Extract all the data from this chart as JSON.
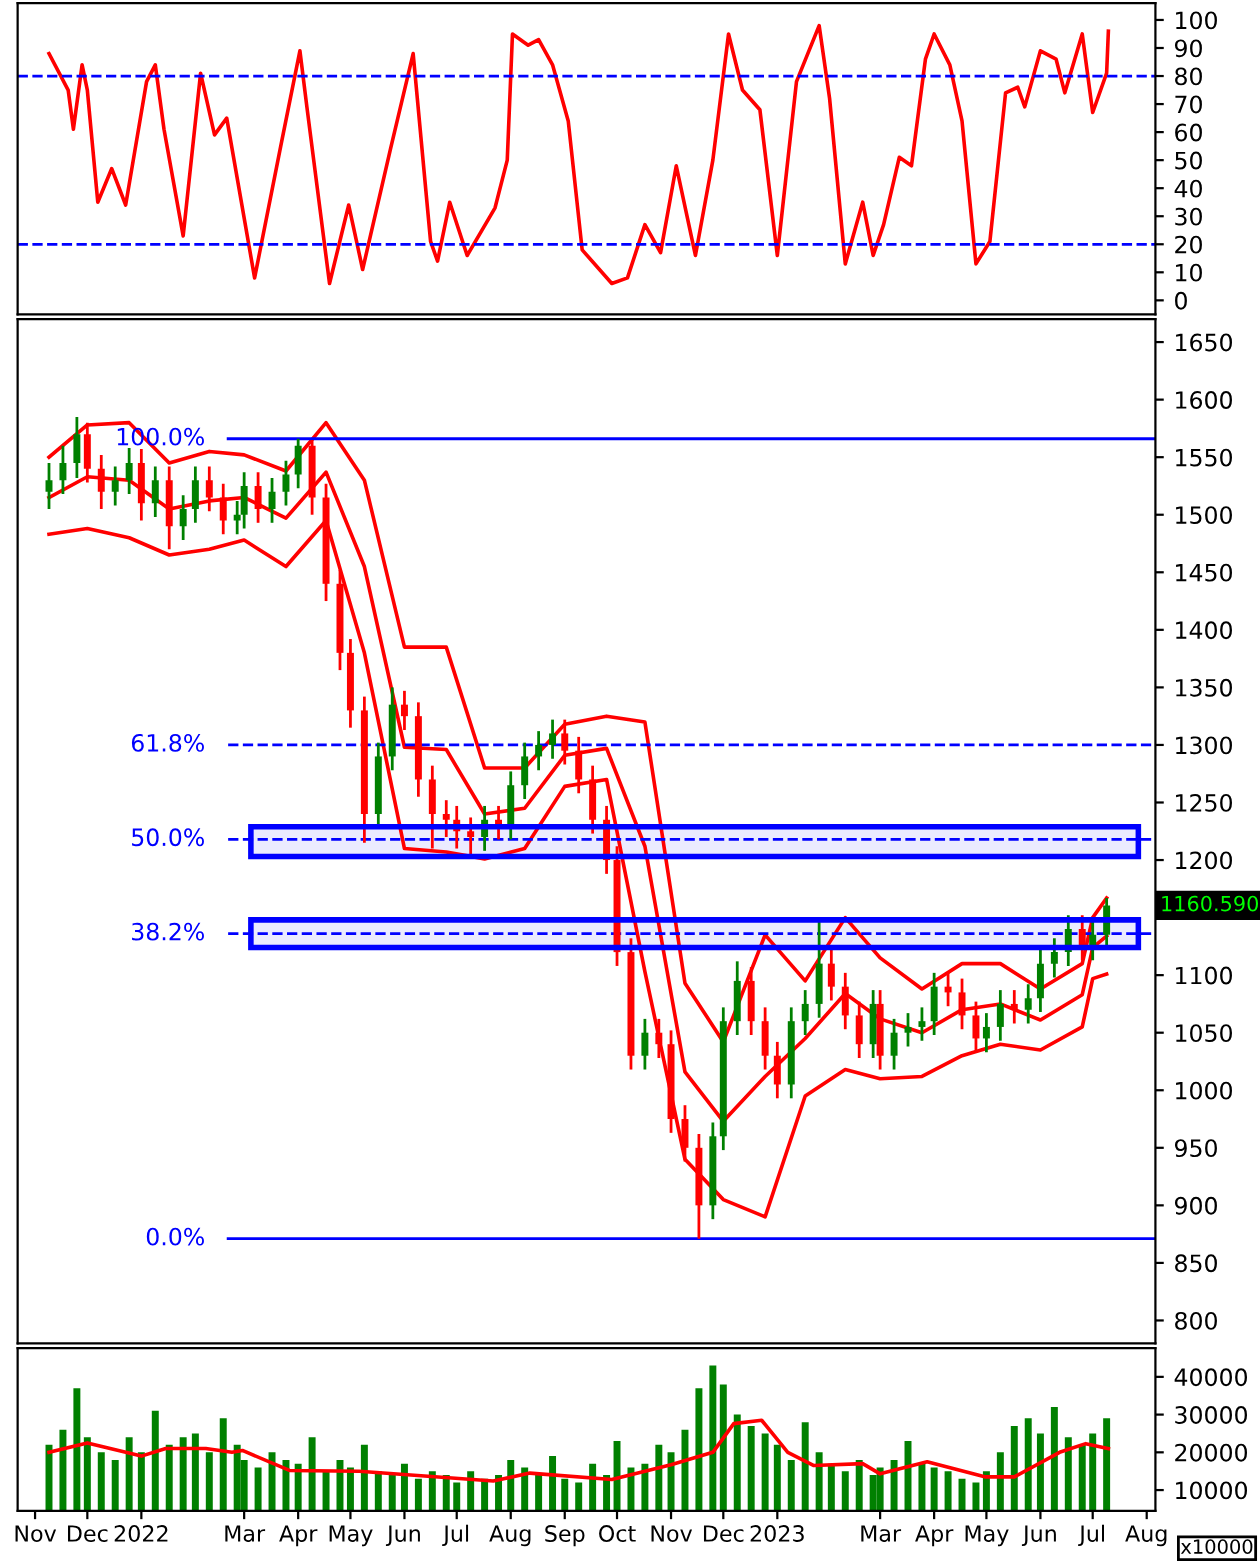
{
  "chart_data": [
    {
      "type": "line",
      "xlim": [
        "2021-10-22",
        "2023-08-06"
      ],
      "ylim": [
        -5,
        106
      ],
      "yticks": [
        0,
        10,
        20,
        30,
        40,
        50,
        60,
        70,
        80,
        90,
        100
      ],
      "tick_labels": "y",
      "series": [
        {
          "color": "#ff0000",
          "x": [
            "2021-11-09",
            "2021-11-20",
            "2021-11-23",
            "2021-11-28",
            "2021-12-01",
            "2021-12-07",
            "2021-12-15",
            "2021-12-23",
            "2022-01-04",
            "2022-01-09",
            "2022-01-14",
            "2022-01-25",
            "2022-02-04",
            "2022-02-12",
            "2022-02-19",
            "2022-03-07",
            "2022-03-22",
            "2022-04-02",
            "2022-04-06",
            "2022-04-19",
            "2022-04-30",
            "2022-05-08",
            "2022-05-24",
            "2022-06-06",
            "2022-06-16",
            "2022-06-20",
            "2022-06-27",
            "2022-07-07",
            "2022-07-23",
            "2022-07-30",
            "2022-08-02",
            "2022-08-11",
            "2022-08-17",
            "2022-08-25",
            "2022-09-03",
            "2022-09-11",
            "2022-09-28",
            "2022-10-07",
            "2022-10-17",
            "2022-10-26",
            "2022-11-04",
            "2022-11-15",
            "2022-11-25",
            "2022-12-04",
            "2022-12-12",
            "2022-12-22",
            "2023-01-01",
            "2023-01-12",
            "2023-01-25",
            "2023-01-31",
            "2023-02-09",
            "2023-02-19",
            "2023-02-25",
            "2023-03-03",
            "2023-03-12",
            "2023-03-19",
            "2023-03-27",
            "2023-04-01",
            "2023-04-10",
            "2023-04-17",
            "2023-04-25",
            "2023-05-03",
            "2023-05-12",
            "2023-05-19",
            "2023-05-23",
            "2023-06-01",
            "2023-06-10",
            "2023-06-15",
            "2023-06-25",
            "2023-07-01",
            "2023-07-09",
            "2023-07-10"
          ],
          "values": [
            88,
            75,
            61,
            84,
            75,
            35,
            47,
            34,
            78,
            84,
            61,
            23,
            81,
            59,
            65,
            8,
            55,
            89,
            69,
            6,
            34,
            11,
            54,
            88,
            21,
            14,
            35,
            16,
            33,
            50,
            95,
            91,
            93,
            84,
            64,
            18,
            6,
            8,
            27,
            17,
            48,
            16,
            50,
            95,
            75,
            68,
            16,
            78,
            98,
            72,
            13,
            35,
            16,
            27,
            51,
            48,
            86,
            95,
            84,
            64,
            13,
            21,
            74,
            76,
            69,
            89,
            86,
            74,
            95,
            67,
            81,
            96
          ]
        }
      ],
      "ref_lines": [
        {
          "axis": "y",
          "value": 80,
          "color": "#0000ff",
          "line_style": "dashed"
        },
        {
          "axis": "y",
          "value": 20,
          "color": "#0000ff",
          "line_style": "dashed"
        }
      ]
    },
    {
      "type": "candlestick",
      "xlim": [
        "2021-10-22",
        "2023-08-06"
      ],
      "ylim": [
        780,
        1670
      ],
      "yticks": [
        800,
        850,
        900,
        950,
        1000,
        1050,
        1100,
        {
          "value": 1150,
          "label": null
        },
        1200,
        1250,
        1300,
        1350,
        1400,
        1450,
        1500,
        1550,
        1600,
        1650
      ],
      "tick_labels": "y",
      "x": [
        "2021-11-09",
        "2021-11-17",
        "2021-11-25",
        "2021-12-01",
        "2021-12-09",
        "2021-12-17",
        "2021-12-25",
        "2022-01-01",
        "2022-01-09",
        "2022-01-17",
        "2022-01-25",
        "2022-02-01",
        "2022-02-09",
        "2022-02-17",
        "2022-02-25",
        "2022-03-01",
        "2022-03-09",
        "2022-03-17",
        "2022-03-25",
        "2022-04-01",
        "2022-04-09",
        "2022-04-17",
        "2022-04-25",
        "2022-05-01",
        "2022-05-09",
        "2022-05-17",
        "2022-05-25",
        "2022-06-01",
        "2022-06-09",
        "2022-06-17",
        "2022-06-25",
        "2022-07-01",
        "2022-07-09",
        "2022-07-17",
        "2022-07-25",
        "2022-08-01",
        "2022-08-09",
        "2022-08-17",
        "2022-08-25",
        "2022-09-01",
        "2022-09-09",
        "2022-09-17",
        "2022-09-25",
        "2022-10-01",
        "2022-10-09",
        "2022-10-17",
        "2022-10-25",
        "2022-11-01",
        "2022-11-09",
        "2022-11-17",
        "2022-11-25",
        "2022-12-01",
        "2022-12-09",
        "2022-12-17",
        "2022-12-25",
        "2023-01-01",
        "2023-01-09",
        "2023-01-17",
        "2023-01-25",
        "2023-02-01",
        "2023-02-09",
        "2023-02-17",
        "2023-02-25",
        "2023-03-01",
        "2023-03-09",
        "2023-03-17",
        "2023-03-25",
        "2023-04-01",
        "2023-04-09",
        "2023-04-17",
        "2023-04-25",
        "2023-05-01",
        "2023-05-09",
        "2023-05-17",
        "2023-05-25",
        "2023-06-01",
        "2023-06-09",
        "2023-06-17",
        "2023-06-25",
        "2023-07-01",
        "2023-07-09"
      ],
      "ohlc": [
        [
          1520,
          1545,
          1505,
          1530
        ],
        [
          1530,
          1560,
          1518,
          1545
        ],
        [
          1545,
          1585,
          1532,
          1570
        ],
        [
          1570,
          1580,
          1528,
          1540
        ],
        [
          1540,
          1552,
          1505,
          1520
        ],
        [
          1520,
          1542,
          1508,
          1530
        ],
        [
          1530,
          1558,
          1518,
          1545
        ],
        [
          1545,
          1557,
          1495,
          1510
        ],
        [
          1510,
          1542,
          1498,
          1530
        ],
        [
          1530,
          1542,
          1470,
          1490
        ],
        [
          1490,
          1517,
          1478,
          1505
        ],
        [
          1505,
          1542,
          1493,
          1530
        ],
        [
          1530,
          1542,
          1503,
          1515
        ],
        [
          1515,
          1527,
          1483,
          1495
        ],
        [
          1495,
          1512,
          1483,
          1500
        ],
        [
          1500,
          1537,
          1488,
          1525
        ],
        [
          1525,
          1537,
          1493,
          1505
        ],
        [
          1505,
          1532,
          1493,
          1520
        ],
        [
          1520,
          1547,
          1508,
          1535
        ],
        [
          1535,
          1566,
          1523,
          1560
        ],
        [
          1560,
          1565,
          1500,
          1515
        ],
        [
          1515,
          1527,
          1425,
          1440
        ],
        [
          1440,
          1452,
          1365,
          1380
        ],
        [
          1380,
          1392,
          1315,
          1330
        ],
        [
          1330,
          1342,
          1215,
          1240
        ],
        [
          1240,
          1302,
          1228,
          1290
        ],
        [
          1290,
          1350,
          1278,
          1335
        ],
        [
          1335,
          1347,
          1313,
          1325
        ],
        [
          1325,
          1337,
          1255,
          1270
        ],
        [
          1270,
          1282,
          1210,
          1240
        ],
        [
          1240,
          1252,
          1220,
          1235
        ],
        [
          1235,
          1247,
          1210,
          1225
        ],
        [
          1225,
          1237,
          1205,
          1220
        ],
        [
          1220,
          1247,
          1208,
          1235
        ],
        [
          1235,
          1247,
          1218,
          1230
        ],
        [
          1230,
          1277,
          1218,
          1265
        ],
        [
          1265,
          1302,
          1253,
          1290
        ],
        [
          1290,
          1312,
          1278,
          1300
        ],
        [
          1300,
          1322,
          1288,
          1310
        ],
        [
          1310,
          1322,
          1283,
          1295
        ],
        [
          1295,
          1307,
          1258,
          1270
        ],
        [
          1270,
          1282,
          1223,
          1235
        ],
        [
          1235,
          1247,
          1188,
          1200
        ],
        [
          1200,
          1212,
          1108,
          1120
        ],
        [
          1120,
          1132,
          1018,
          1030
        ],
        [
          1030,
          1062,
          1018,
          1050
        ],
        [
          1050,
          1062,
          1028,
          1040
        ],
        [
          1040,
          1052,
          963,
          975
        ],
        [
          975,
          987,
          938,
          950
        ],
        [
          950,
          962,
          871,
          900
        ],
        [
          900,
          972,
          888,
          960
        ],
        [
          960,
          1072,
          948,
          1060
        ],
        [
          1060,
          1112,
          1048,
          1095
        ],
        [
          1095,
          1107,
          1048,
          1060
        ],
        [
          1060,
          1072,
          1018,
          1030
        ],
        [
          1030,
          1042,
          993,
          1005
        ],
        [
          1005,
          1072,
          993,
          1060
        ],
        [
          1060,
          1087,
          1048,
          1075
        ],
        [
          1075,
          1148,
          1063,
          1110
        ],
        [
          1110,
          1122,
          1078,
          1090
        ],
        [
          1090,
          1102,
          1053,
          1065
        ],
        [
          1065,
          1077,
          1028,
          1040
        ],
        [
          1040,
          1087,
          1028,
          1075
        ],
        [
          1075,
          1087,
          1018,
          1030
        ],
        [
          1030,
          1062,
          1018,
          1050
        ],
        [
          1050,
          1067,
          1038,
          1055
        ],
        [
          1055,
          1072,
          1043,
          1060
        ],
        [
          1060,
          1102,
          1048,
          1090
        ],
        [
          1090,
          1102,
          1073,
          1085
        ],
        [
          1085,
          1097,
          1053,
          1065
        ],
        [
          1065,
          1077,
          1033,
          1045
        ],
        [
          1045,
          1067,
          1033,
          1055
        ],
        [
          1055,
          1087,
          1043,
          1075
        ],
        [
          1075,
          1087,
          1058,
          1070
        ],
        [
          1070,
          1092,
          1058,
          1080
        ],
        [
          1080,
          1122,
          1068,
          1110
        ],
        [
          1110,
          1132,
          1098,
          1120
        ],
        [
          1120,
          1152,
          1108,
          1140
        ],
        [
          1140,
          1152,
          1113,
          1125
        ],
        [
          1125,
          1147,
          1113,
          1135
        ],
        [
          1135,
          1167,
          1123,
          1160.59
        ]
      ],
      "colors": [
        "#008000",
        "#008000",
        "#008000",
        "#ff0000",
        "#ff0000",
        "#008000",
        "#008000",
        "#ff0000",
        "#008000",
        "#ff0000",
        "#008000",
        "#008000",
        "#ff0000",
        "#ff0000",
        "#008000",
        "#008000",
        "#ff0000",
        "#008000",
        "#008000",
        "#008000",
        "#ff0000",
        "#ff0000",
        "#ff0000",
        "#ff0000",
        "#ff0000",
        "#008000",
        "#008000",
        "#ff0000",
        "#ff0000",
        "#ff0000",
        "#ff0000",
        "#ff0000",
        "#ff0000",
        "#008000",
        "#ff0000",
        "#008000",
        "#008000",
        "#008000",
        "#008000",
        "#ff0000",
        "#ff0000",
        "#ff0000",
        "#ff0000",
        "#ff0000",
        "#ff0000",
        "#008000",
        "#ff0000",
        "#ff0000",
        "#ff0000",
        "#ff0000",
        "#008000",
        "#008000",
        "#008000",
        "#ff0000",
        "#ff0000",
        "#ff0000",
        "#008000",
        "#008000",
        "#008000",
        "#ff0000",
        "#ff0000",
        "#ff0000",
        "#008000",
        "#ff0000",
        "#008000",
        "#008000",
        "#008000",
        "#008000",
        "#ff0000",
        "#ff0000",
        "#ff0000",
        "#008000",
        "#008000",
        "#ff0000",
        "#008000",
        "#008000",
        "#008000",
        "#008000",
        "#ff0000",
        "#008000",
        "#008000"
      ],
      "series": [
        {
          "type": "line",
          "color": "#ff0000",
          "x": [
            "2021-11-09",
            "2021-12-01",
            "2021-12-25",
            "2022-01-17",
            "2022-02-09",
            "2022-03-01",
            "2022-03-25",
            "2022-04-17",
            "2022-05-09",
            "2022-06-01",
            "2022-06-25",
            "2022-07-17",
            "2022-08-09",
            "2022-09-01",
            "2022-09-25",
            "2022-10-17",
            "2022-11-09",
            "2022-12-01",
            "2022-12-25",
            "2023-01-17",
            "2023-02-09",
            "2023-03-01",
            "2023-03-25",
            "2023-04-17",
            "2023-05-09",
            "2023-06-01",
            "2023-06-25",
            "2023-07-01",
            "2023-07-09"
          ],
          "values": [
            1550,
            1578,
            1580,
            1545,
            1555,
            1552,
            1538,
            1580,
            1530,
            1385,
            1385,
            1280,
            1280,
            1318,
            1325,
            1320,
            1093,
            1042,
            1135,
            1095,
            1150,
            1115,
            1088,
            1110,
            1110,
            1088,
            1110,
            1150,
            1167
          ]
        },
        {
          "type": "line",
          "color": "#ff0000",
          "x": [
            "2021-11-09",
            "2021-12-01",
            "2021-12-25",
            "2022-01-17",
            "2022-02-09",
            "2022-03-01",
            "2022-03-25",
            "2022-04-17",
            "2022-05-09",
            "2022-06-01",
            "2022-06-25",
            "2022-07-17",
            "2022-08-09",
            "2022-09-01",
            "2022-09-25",
            "2022-10-17",
            "2022-11-09",
            "2022-12-01",
            "2022-12-25",
            "2023-01-17",
            "2023-02-09",
            "2023-03-01",
            "2023-03-25",
            "2023-04-17",
            "2023-05-09",
            "2023-06-01",
            "2023-06-25",
            "2023-07-01",
            "2023-07-09"
          ],
          "values": [
            1515,
            1533,
            1530,
            1505,
            1512,
            1515,
            1497,
            1537,
            1455,
            1298,
            1296,
            1240,
            1245,
            1291,
            1297,
            1212,
            1016,
            973,
            1012,
            1045,
            1084,
            1062,
            1050,
            1070,
            1075,
            1061,
            1083,
            1124,
            1134
          ]
        },
        {
          "type": "line",
          "color": "#ff0000",
          "x": [
            "2021-11-09",
            "2021-12-01",
            "2021-12-25",
            "2022-01-17",
            "2022-02-09",
            "2022-03-01",
            "2022-03-25",
            "2022-04-17",
            "2022-05-09",
            "2022-06-01",
            "2022-06-25",
            "2022-07-17",
            "2022-08-09",
            "2022-09-01",
            "2022-09-25",
            "2022-10-17",
            "2022-11-09",
            "2022-12-01",
            "2022-12-25",
            "2023-01-17",
            "2023-02-09",
            "2023-03-01",
            "2023-03-25",
            "2023-04-17",
            "2023-05-09",
            "2023-06-01",
            "2023-06-25",
            "2023-07-01",
            "2023-07-09"
          ],
          "values": [
            1483,
            1488,
            1480,
            1465,
            1470,
            1478,
            1455,
            1495,
            1380,
            1210,
            1207,
            1201,
            1210,
            1264,
            1270,
            1103,
            940,
            905,
            890,
            995,
            1018,
            1010,
            1012,
            1030,
            1040,
            1035,
            1055,
            1097,
            1101
          ]
        }
      ],
      "ref_lines": [
        {
          "axis": "y",
          "value": 1566,
          "color": "#0000ff",
          "line_style": "solid"
        },
        {
          "axis": "y",
          "value": 1300,
          "color": "#0000ff",
          "line_style": "dashed"
        },
        {
          "axis": "y",
          "value": 1218,
          "color": "#0000ff",
          "line_style": "dashed"
        },
        {
          "axis": "y",
          "value": 1136,
          "color": "#0000ff",
          "line_style": "dashed"
        },
        {
          "axis": "y",
          "value": 871,
          "color": "#0000ff",
          "line_style": "solid"
        }
      ],
      "bands": [
        {
          "axis": "y",
          "from": 1203,
          "to": 1229,
          "color": "#0000ff"
        },
        {
          "axis": "y",
          "from": 1124,
          "to": 1148,
          "color": "#0000ff"
        }
      ],
      "annotations": [
        {
          "text": "100.0%",
          "x": "2022-03-01",
          "y": 1566
        },
        {
          "text": "61.8%",
          "x": "2022-03-01",
          "y": 1300
        },
        {
          "text": "50.0%",
          "x": "2022-03-01",
          "y": 1218
        },
        {
          "text": "38.2%",
          "x": "2022-03-01",
          "y": 1136
        },
        {
          "text": "0.0%",
          "x": "2022-03-01",
          "y": 871
        },
        "1160.590"
      ]
    },
    {
      "type": "bar",
      "xlim": [
        "2021-10-22",
        "2023-08-06"
      ],
      "ylim": [
        4500,
        47600
      ],
      "yticks": [
        10000,
        20000,
        30000,
        40000
      ],
      "xticks": [
        {
          "value": "2021-11-01",
          "label": "Nov"
        },
        {
          "value": "2021-12-01",
          "label": "Dec"
        },
        {
          "value": "2022-01-01",
          "label": "2022"
        },
        {
          "value": "2022-03-01",
          "label": "Mar"
        },
        {
          "value": "2022-04-01",
          "label": "Apr"
        },
        {
          "value": "2022-05-01",
          "label": "May"
        },
        {
          "value": "2022-06-01",
          "label": "Jun"
        },
        {
          "value": "2022-07-01",
          "label": "Jul"
        },
        {
          "value": "2022-08-01",
          "label": "Aug"
        },
        {
          "value": "2022-09-01",
          "label": "Sep"
        },
        {
          "value": "2022-10-01",
          "label": "Oct"
        },
        {
          "value": "2022-11-01",
          "label": "Nov"
        },
        {
          "value": "2022-12-01",
          "label": "Dec"
        },
        {
          "value": "2023-01-01",
          "label": "2023"
        },
        {
          "value": "2023-03-01",
          "label": "Mar"
        },
        {
          "value": "2023-04-01",
          "label": "Apr"
        },
        {
          "value": "2023-05-01",
          "label": "May"
        },
        {
          "value": "2023-06-01",
          "label": "Jun"
        },
        {
          "value": "2023-07-01",
          "label": "Jul"
        },
        {
          "value": "2023-08-01",
          "label": "Aug"
        }
      ],
      "series": [
        {
          "type": "bar",
          "color": "#008000",
          "x": [
            "2021-11-09",
            "2021-11-17",
            "2021-11-25",
            "2021-12-01",
            "2021-12-09",
            "2021-12-17",
            "2021-12-25",
            "2022-01-01",
            "2022-01-09",
            "2022-01-17",
            "2022-01-25",
            "2022-02-01",
            "2022-02-09",
            "2022-02-17",
            "2022-02-25",
            "2022-03-01",
            "2022-03-09",
            "2022-03-17",
            "2022-03-25",
            "2022-04-01",
            "2022-04-09",
            "2022-04-17",
            "2022-04-25",
            "2022-05-01",
            "2022-05-09",
            "2022-05-17",
            "2022-05-25",
            "2022-06-01",
            "2022-06-09",
            "2022-06-17",
            "2022-06-25",
            "2022-07-01",
            "2022-07-09",
            "2022-07-17",
            "2022-07-25",
            "2022-08-01",
            "2022-08-09",
            "2022-08-17",
            "2022-08-25",
            "2022-09-01",
            "2022-09-09",
            "2022-09-17",
            "2022-09-25",
            "2022-10-01",
            "2022-10-09",
            "2022-10-17",
            "2022-10-25",
            "2022-11-01",
            "2022-11-09",
            "2022-11-17",
            "2022-11-25",
            "2022-12-01",
            "2022-12-09",
            "2022-12-17",
            "2022-12-25",
            "2023-01-01",
            "2023-01-09",
            "2023-01-17",
            "2023-01-25",
            "2023-02-01",
            "2023-02-09",
            "2023-02-17",
            "2023-02-25",
            "2023-03-01",
            "2023-03-09",
            "2023-03-17",
            "2023-03-25",
            "2023-04-01",
            "2023-04-09",
            "2023-04-17",
            "2023-04-25",
            "2023-05-01",
            "2023-05-09",
            "2023-05-17",
            "2023-05-25",
            "2023-06-01",
            "2023-06-09",
            "2023-06-17",
            "2023-06-25",
            "2023-07-01",
            "2023-07-09"
          ],
          "values": [
            22000,
            26000,
            37000,
            24000,
            20000,
            18000,
            24000,
            20000,
            31000,
            22000,
            24000,
            25000,
            20000,
            29000,
            22000,
            18000,
            16000,
            20000,
            18000,
            17000,
            24000,
            15000,
            18000,
            16000,
            22000,
            15000,
            14000,
            17000,
            13000,
            15000,
            14000,
            12000,
            15000,
            13000,
            14000,
            18000,
            16000,
            14000,
            19000,
            13000,
            12000,
            17000,
            14000,
            23000,
            16000,
            17000,
            22000,
            20000,
            26000,
            37000,
            43000,
            38000,
            30000,
            27000,
            25000,
            22000,
            18000,
            28000,
            20000,
            17000,
            15000,
            18000,
            14000,
            16000,
            18000,
            23000,
            17000,
            16000,
            15000,
            13000,
            12000,
            15000,
            20000,
            27000,
            29000,
            25000,
            32000,
            24000,
            22000,
            25000,
            29000
          ]
        },
        {
          "type": "line",
          "color": "#ff0000",
          "x": [
            "2021-11-09",
            "2021-12-01",
            "2022-01-01",
            "2022-01-15",
            "2022-02-07",
            "2022-02-22",
            "2022-02-28",
            "2022-03-27",
            "2022-05-06",
            "2022-07-22",
            "2022-08-12",
            "2022-09-28",
            "2022-11-01",
            "2022-11-25",
            "2022-12-07",
            "2022-12-23",
            "2023-01-07",
            "2023-01-22",
            "2023-02-19",
            "2023-03-01",
            "2023-03-28",
            "2023-04-30",
            "2023-05-17",
            "2023-06-12",
            "2023-06-27",
            "2023-07-10"
          ],
          "values": [
            20000,
            22500,
            19000,
            21000,
            21000,
            20000,
            20500,
            15200,
            15000,
            12400,
            14500,
            12800,
            16700,
            20000,
            27600,
            28500,
            20000,
            16500,
            17000,
            14300,
            17500,
            13500,
            13500,
            20000,
            22300,
            21000
          ]
        }
      ],
      "annotations": [
        "x10000"
      ]
    }
  ]
}
